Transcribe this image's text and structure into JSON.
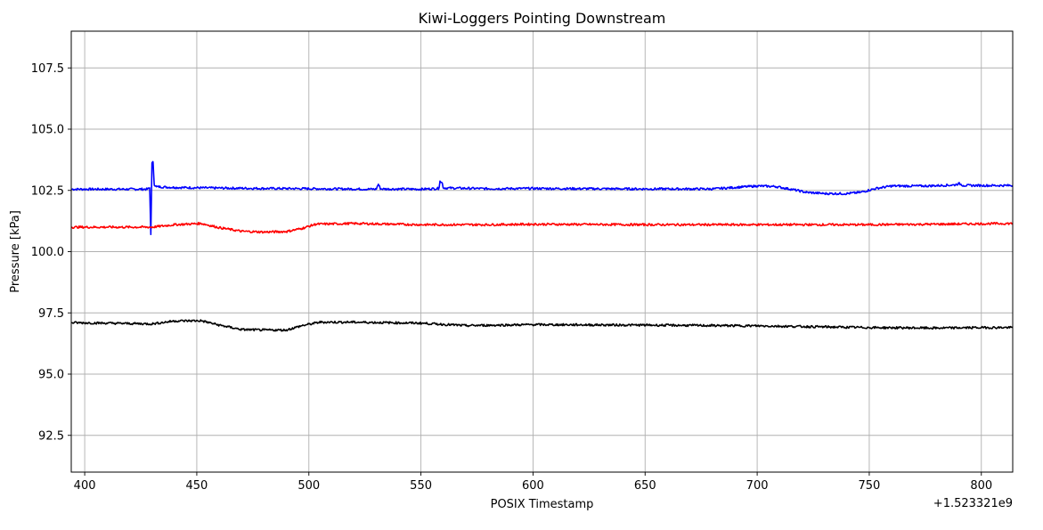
{
  "chart_data": {
    "type": "line",
    "title": "Kiwi-Loggers Pointing Downstream",
    "xlabel": "POSIX Timestamp",
    "ylabel": "Pressure [kPa]",
    "x_offset_label": "+1.523321e9",
    "xlim": [
      394,
      814
    ],
    "ylim": [
      91.0,
      109.0
    ],
    "x_ticks": [
      400,
      450,
      500,
      550,
      600,
      650,
      700,
      750,
      800
    ],
    "x_tick_labels": [
      "400",
      "450",
      "500",
      "550",
      "600",
      "650",
      "700",
      "750",
      "800"
    ],
    "y_ticks": [
      92.5,
      95.0,
      97.5,
      100.0,
      102.5,
      105.0,
      107.5
    ],
    "y_tick_labels": [
      "92.5",
      "95.0",
      "97.5",
      "100.0",
      "102.5",
      "105.0",
      "107.5"
    ],
    "grid": true,
    "series": [
      {
        "color": "#0000ff",
        "points": [
          [
            394,
            102.55
          ],
          [
            410,
            102.55
          ],
          [
            428,
            102.55
          ],
          [
            429,
            102.6
          ],
          [
            429.5,
            100.7
          ],
          [
            430,
            103.6
          ],
          [
            430.5,
            103.65
          ],
          [
            431,
            102.75
          ],
          [
            432,
            102.65
          ],
          [
            440,
            102.62
          ],
          [
            455,
            102.6
          ],
          [
            480,
            102.58
          ],
          [
            500,
            102.57
          ],
          [
            530,
            102.55
          ],
          [
            531,
            102.75
          ],
          [
            532,
            102.56
          ],
          [
            550,
            102.55
          ],
          [
            558,
            102.58
          ],
          [
            558.5,
            102.88
          ],
          [
            559.5,
            102.8
          ],
          [
            560,
            102.6
          ],
          [
            580,
            102.57
          ],
          [
            600,
            102.58
          ],
          [
            620,
            102.57
          ],
          [
            650,
            102.56
          ],
          [
            680,
            102.56
          ],
          [
            690,
            102.62
          ],
          [
            700,
            102.68
          ],
          [
            708,
            102.66
          ],
          [
            715,
            102.55
          ],
          [
            722,
            102.42
          ],
          [
            730,
            102.37
          ],
          [
            740,
            102.37
          ],
          [
            746,
            102.42
          ],
          [
            753,
            102.58
          ],
          [
            760,
            102.68
          ],
          [
            775,
            102.68
          ],
          [
            788,
            102.72
          ],
          [
            790,
            102.78
          ],
          [
            792,
            102.7
          ],
          [
            800,
            102.7
          ],
          [
            814,
            102.7
          ]
        ]
      },
      {
        "color": "#ff0000",
        "points": [
          [
            394,
            101.0
          ],
          [
            410,
            101.0
          ],
          [
            430,
            101.0
          ],
          [
            440,
            101.1
          ],
          [
            452,
            101.15
          ],
          [
            460,
            100.98
          ],
          [
            470,
            100.83
          ],
          [
            480,
            100.8
          ],
          [
            490,
            100.82
          ],
          [
            497,
            100.95
          ],
          [
            503,
            101.12
          ],
          [
            520,
            101.15
          ],
          [
            550,
            101.1
          ],
          [
            580,
            101.1
          ],
          [
            600,
            101.12
          ],
          [
            650,
            101.1
          ],
          [
            700,
            101.1
          ],
          [
            750,
            101.1
          ],
          [
            780,
            101.12
          ],
          [
            814,
            101.15
          ]
        ]
      },
      {
        "color": "#000000",
        "points": [
          [
            394,
            97.1
          ],
          [
            410,
            97.08
          ],
          [
            430,
            97.05
          ],
          [
            440,
            97.17
          ],
          [
            452,
            97.18
          ],
          [
            460,
            97.0
          ],
          [
            470,
            96.82
          ],
          [
            480,
            96.8
          ],
          [
            490,
            96.8
          ],
          [
            497,
            96.98
          ],
          [
            505,
            97.12
          ],
          [
            520,
            97.12
          ],
          [
            550,
            97.08
          ],
          [
            570,
            96.98
          ],
          [
            600,
            97.02
          ],
          [
            650,
            97.0
          ],
          [
            700,
            96.97
          ],
          [
            750,
            96.9
          ],
          [
            780,
            96.88
          ],
          [
            800,
            96.9
          ],
          [
            814,
            96.9
          ]
        ]
      }
    ]
  }
}
